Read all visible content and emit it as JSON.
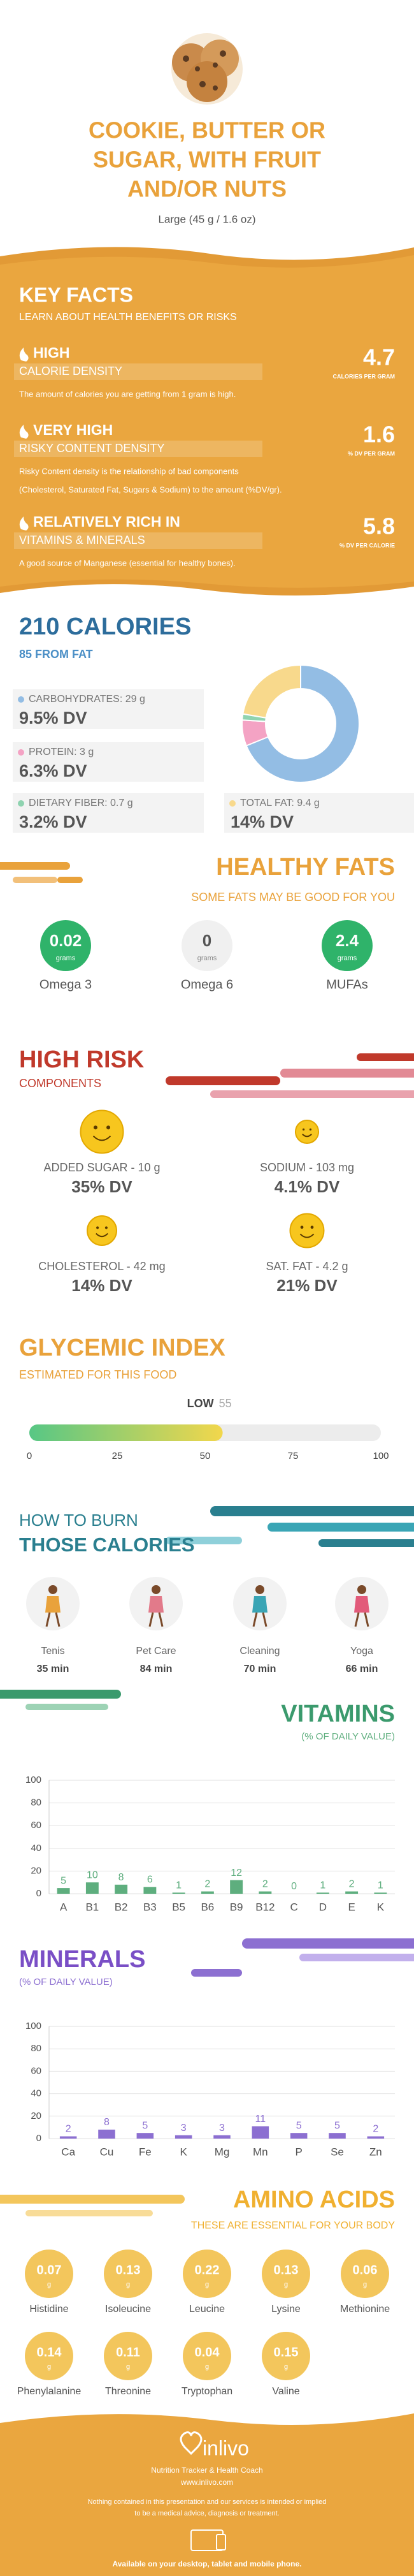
{
  "header": {
    "title_lines": [
      "COOKIE, BUTTER OR",
      "SUGAR, WITH FRUIT",
      "AND/OR NUTS"
    ],
    "serving": "Large (45 g / 1.6 oz)"
  },
  "key_facts": {
    "title": "KEY FACTS",
    "subtitle": "LEARN ABOUT HEALTH BENEFITS OR RISKS",
    "facts": [
      {
        "level": "HIGH",
        "name": "CALORIE DENSITY",
        "value": 4.7,
        "unit": "CALORIES PER GRAM",
        "description": [
          "The amount of calories you are getting from 1 gram is high."
        ]
      },
      {
        "level": "VERY HIGH",
        "name": "RISKY CONTENT DENSITY",
        "value": 1.6,
        "unit": "% DV PER GRAM",
        "description": [
          "Risky Content density is the relationship of bad components",
          "(Cholesterol, Saturated Fat, Sugars & Sodium) to the amount (%DV/gr)."
        ]
      },
      {
        "level": "RELATIVELY RICH IN",
        "name": "VITAMINS & MINERALS",
        "value": 5.8,
        "unit": "% DV PER CALORIE",
        "description": [
          "A good source of Manganese (essential for healthy bones)."
        ]
      }
    ]
  },
  "healthy_fats": {
    "title": "HEALTHY FATS",
    "subtitle": "SOME FATS MAY BE GOOD FOR YOU",
    "unit": "grams",
    "items": [
      {
        "name": "Omega 3",
        "value": 0.02
      },
      {
        "name": "Omega 6",
        "value": 0
      },
      {
        "name": "MUFAs",
        "value": 2.4
      }
    ]
  },
  "high_risk": {
    "title": "HIGH RISK",
    "subtitle": "COMPONENTS",
    "items": [
      {
        "label": "ADDED SUGAR - 10 g",
        "dv": {
          "value": 35,
          "label": "35% DV"
        }
      },
      {
        "label": "SODIUM - 103 mg",
        "dv": {
          "value": 4.1,
          "label": "4.1% DV"
        }
      },
      {
        "label": "CHOLESTEROL - 42 mg",
        "dv": {
          "value": 14,
          "label": "14% DV"
        }
      },
      {
        "label": "SAT. FAT - 4.2 g",
        "dv": {
          "value": 21,
          "label": "21% DV"
        }
      }
    ]
  },
  "burn": {
    "title_lines": [
      "HOW TO BURN",
      "THOSE CALORIES"
    ],
    "activities": [
      {
        "name": "Tenis",
        "time": "35 min"
      },
      {
        "name": "Pet Care",
        "time": "84 min"
      },
      {
        "name": "Cleaning",
        "time": "70 min"
      },
      {
        "name": "Yoga",
        "time": "66 min"
      }
    ]
  },
  "amino_acids": {
    "title": "AMINO ACIDS",
    "subtitle": "THESE ARE ESSENTIAL FOR YOUR BODY",
    "unit": "g",
    "items": [
      {
        "name": "Histidine",
        "value": 0.07
      },
      {
        "name": "Isoleucine",
        "value": 0.13
      },
      {
        "name": "Leucine",
        "value": 0.22
      },
      {
        "name": "Lysine",
        "value": 0.13
      },
      {
        "name": "Methionine",
        "value": 0.06
      },
      {
        "name": "Phenylalanine",
        "value": 0.14
      },
      {
        "name": "Threonine",
        "value": 0.11
      },
      {
        "name": "Tryptophan",
        "value": 0.04
      },
      {
        "name": "Valine",
        "value": 0.15
      }
    ]
  },
  "footer": {
    "brand": "inlivo",
    "tagline": "Nutrition Tracker & Health Coach",
    "url": "www.inlivo.com",
    "disclaimer": [
      "Nothing contained in this presentation and our services is intended or implied",
      "to be a medical advice, diagnosis or treatment."
    ],
    "availability": "Available on your desktop, tablet and mobile phone."
  },
  "chart_data": [
    {
      "type": "donut",
      "title": "210 CALORIES",
      "subtitle": "85 FROM FAT",
      "categories": [
        "CARBOHYDRATES: 29 g",
        "PROTEIN: 3 g",
        "DIETARY FIBER: 0.7 g",
        "TOTAL FAT: 9.4 g"
      ],
      "values": [
        29,
        3,
        0.7,
        9.4
      ],
      "dv": [
        "9.5% DV",
        "6.3% DV",
        "3.2% DV",
        "14% DV"
      ],
      "colors": [
        "#93bde4",
        "#f4a3c4",
        "#8fd3b0",
        "#f8d98c"
      ]
    },
    {
      "type": "gauge",
      "title": "GLYCEMIC INDEX",
      "subtitle": "ESTIMATED FOR THIS FOOD",
      "level": "LOW",
      "value": 55,
      "xlim": [
        0,
        100
      ],
      "xticks": [
        0,
        25,
        50,
        75,
        100
      ]
    },
    {
      "type": "bar",
      "title": "VITAMINS",
      "subtitle": "(% OF DAILY VALUE)",
      "categories": [
        "A",
        "B1",
        "B2",
        "B3",
        "B5",
        "B6",
        "B9",
        "B12",
        "C",
        "D",
        "E",
        "K"
      ],
      "values": [
        5,
        10,
        8,
        6,
        1,
        2,
        12,
        2,
        0,
        1,
        2,
        1
      ],
      "color": "#5eae7e",
      "ylim": [
        0,
        100
      ],
      "yticks": [
        0,
        20,
        40,
        60,
        80,
        100
      ],
      "grid": true
    },
    {
      "type": "bar",
      "title": "MINERALS",
      "subtitle": "(% OF DAILY VALUE)",
      "categories": [
        "Ca",
        "Cu",
        "Fe",
        "K",
        "Mg",
        "Mn",
        "P",
        "Se",
        "Zn"
      ],
      "values": [
        2,
        8,
        5,
        3,
        3,
        11,
        5,
        5,
        2
      ],
      "color": "#8c6fd1",
      "ylim": [
        0,
        100
      ],
      "yticks": [
        0,
        20,
        40,
        60,
        80,
        100
      ],
      "grid": true
    }
  ]
}
